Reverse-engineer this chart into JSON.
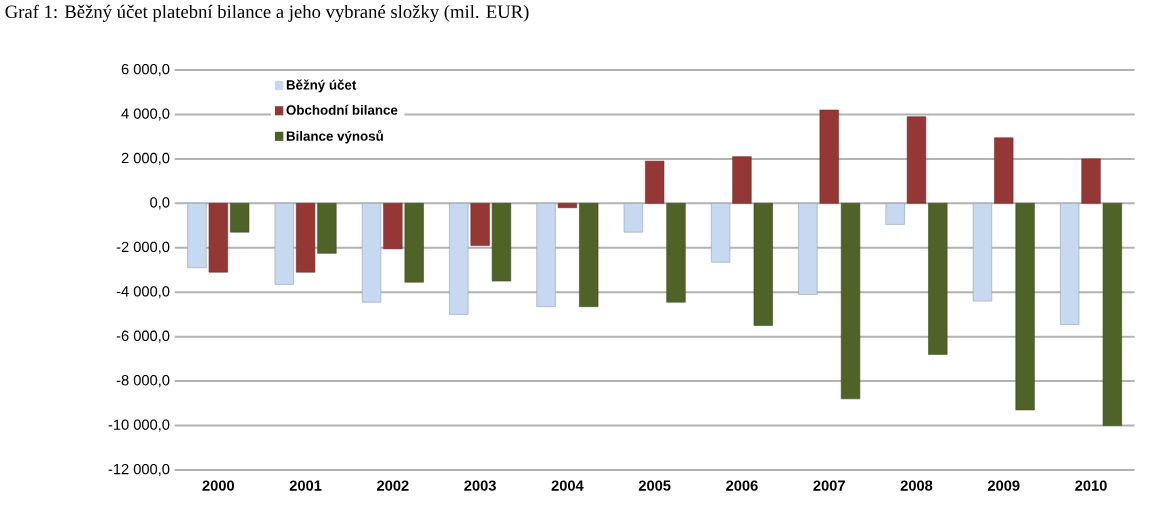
{
  "chart_data": {
    "type": "bar",
    "title": "Graf 1: Běžný účet platební bilance a jeho vybrané složky (mil. EUR)",
    "categories": [
      "2000",
      "2001",
      "2002",
      "2003",
      "2004",
      "2005",
      "2006",
      "2007",
      "2008",
      "2009",
      "2010"
    ],
    "series": [
      {
        "name": "Běžný účet",
        "color": "#c6d9f1",
        "values": [
          -2900,
          -3650,
          -4450,
          -5000,
          -4650,
          -1300,
          -2650,
          -4100,
          -950,
          -4400,
          -5450
        ]
      },
      {
        "name": "Obchodní bilance",
        "color": "#953735",
        "values": [
          -3100,
          -3100,
          -2050,
          -1900,
          -200,
          1900,
          2100,
          4200,
          3900,
          2950,
          2000
        ]
      },
      {
        "name": "Bilance výnosů",
        "color": "#4f6228",
        "values": [
          -1300,
          -2250,
          -3550,
          -3500,
          -4650,
          -4450,
          -5500,
          -8800,
          -6800,
          -9300,
          -10000
        ]
      }
    ],
    "ylim": [
      -12000,
      6000
    ],
    "yticks": [
      {
        "value": -12000,
        "label": "-12 000,0"
      },
      {
        "value": -10000,
        "label": "-10 000,0"
      },
      {
        "value": -8000,
        "label": "-8 000,0"
      },
      {
        "value": -6000,
        "label": "-6 000,0"
      },
      {
        "value": -4000,
        "label": "-4 000,0"
      },
      {
        "value": -2000,
        "label": "-2 000,0"
      },
      {
        "value": 0,
        "label": "0,0"
      },
      {
        "value": 2000,
        "label": "2 000,0"
      },
      {
        "value": 4000,
        "label": "4 000,0"
      },
      {
        "value": 6000,
        "label": "6 000,0"
      }
    ],
    "grid": "y",
    "legend": "top left"
  }
}
